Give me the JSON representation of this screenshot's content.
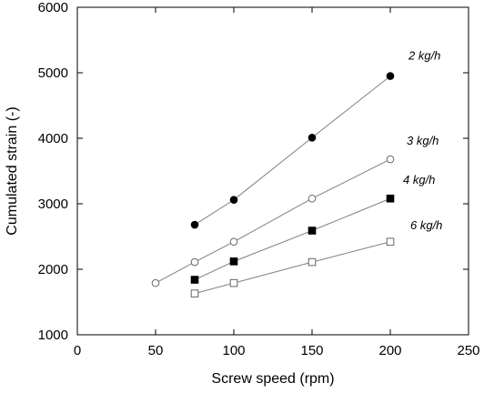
{
  "chart_data": {
    "type": "scatter",
    "title": "",
    "xlabel": "Screw speed (rpm)",
    "ylabel": "Cumulated strain (-)",
    "xlim": [
      0,
      250
    ],
    "ylim": [
      1000,
      6000
    ],
    "xticks": [
      0,
      50,
      100,
      150,
      200,
      250
    ],
    "yticks": [
      1000,
      2000,
      3000,
      4000,
      5000,
      6000
    ],
    "grid": false,
    "series": [
      {
        "name": "2 kg/h",
        "marker": "filled-circle",
        "x": [
          75,
          100,
          150,
          200
        ],
        "y": [
          2680,
          3060,
          4010,
          4950
        ]
      },
      {
        "name": "3 kg/h",
        "marker": "open-circle",
        "x": [
          50,
          75,
          100,
          150,
          200
        ],
        "y": [
          1790,
          2110,
          2420,
          3080,
          3680
        ]
      },
      {
        "name": "4 kg/h",
        "marker": "filled-square",
        "x": [
          75,
          100,
          150,
          200
        ],
        "y": [
          1840,
          2120,
          2590,
          3080
        ]
      },
      {
        "name": "6 kg/h",
        "marker": "open-square",
        "x": [
          75,
          100,
          150,
          200
        ],
        "y": [
          1630,
          1790,
          2110,
          2420
        ]
      }
    ],
    "colors": {
      "line": "#808080",
      "marker": "#000000",
      "axis": "#000000"
    }
  }
}
